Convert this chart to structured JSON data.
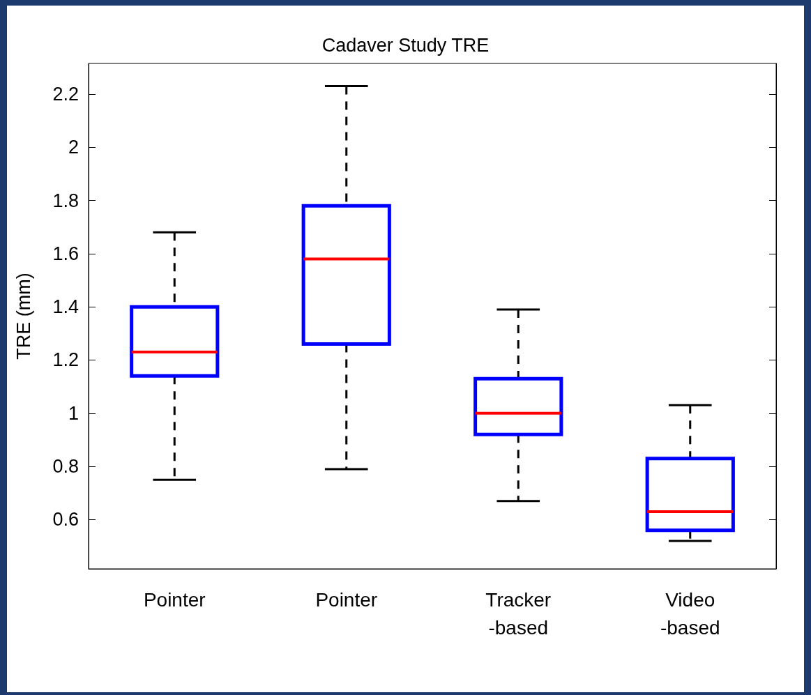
{
  "chart_data": {
    "type": "box",
    "title": "Cadaver Study TRE",
    "ylabel": "TRE (mm)",
    "categories": [
      "Pointer",
      "Pointer",
      "Tracker\n-based",
      "Video\n-based"
    ],
    "ylim": [
      0.415,
      2.315
    ],
    "yticks": [
      0.6,
      0.8,
      1,
      1.2,
      1.4,
      1.6,
      1.8,
      2,
      2.2
    ],
    "grid": false,
    "series": [
      {
        "color": "#0000ff",
        "boxes": [
          {
            "low": 0.75,
            "q1": 1.14,
            "median": 1.23,
            "q3": 1.4,
            "high": 1.68
          },
          {
            "low": 0.79,
            "q1": 1.26,
            "median": 1.58,
            "q3": 1.78,
            "high": 2.23
          },
          {
            "low": 0.67,
            "q1": 0.92,
            "median": 1.0,
            "q3": 1.13,
            "high": 1.39
          },
          {
            "low": 0.52,
            "q1": 0.56,
            "median": 0.63,
            "q3": 0.83,
            "high": 1.03
          }
        ]
      }
    ]
  }
}
